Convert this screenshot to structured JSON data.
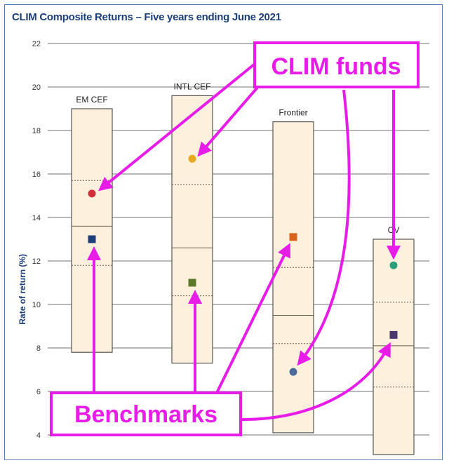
{
  "title": "CLIM Composite Returns – Five years ending June 2021",
  "colors": {
    "title": "#1c3f78",
    "band_fill": "#fdf0dc",
    "band_stroke": "#555555",
    "callout": "#e81ce8",
    "grid": "#444444"
  },
  "chart_data": {
    "type": "scatter",
    "ylabel": "Rate of return (%)",
    "ylim": [
      4,
      22
    ],
    "yticks": [
      4,
      6,
      8,
      10,
      12,
      14,
      16,
      18,
      20,
      22
    ],
    "grid": true,
    "categories": [
      {
        "label": "EM CEF",
        "range": [
          7.8,
          19.0
        ],
        "quartiles": [
          11.8,
          13.6,
          15.7
        ],
        "fund": {
          "value": 15.1,
          "color": "#d0303a"
        },
        "benchmark": {
          "value": 13.0,
          "color": "#1e3f7a"
        }
      },
      {
        "label": "INTL CEF",
        "range": [
          7.3,
          19.6
        ],
        "quartiles": [
          10.4,
          12.6,
          15.5
        ],
        "fund": {
          "value": 16.7,
          "color": "#e6a820"
        },
        "benchmark": {
          "value": 11.0,
          "color": "#5a7a2a"
        }
      },
      {
        "label": "Frontier",
        "range": [
          4.1,
          18.4
        ],
        "quartiles": [
          8.2,
          9.5,
          11.7
        ],
        "fund": {
          "value": 6.9,
          "color": "#4a6a9a"
        },
        "benchmark": {
          "value": 13.1,
          "color": "#d8641c"
        }
      },
      {
        "label": "CV",
        "range": [
          3.1,
          13.0
        ],
        "quartiles": [
          6.2,
          8.1,
          10.1
        ],
        "fund": {
          "value": 11.8,
          "color": "#2aa07a"
        },
        "benchmark": {
          "value": 8.6,
          "color": "#4a3a6a"
        }
      }
    ]
  },
  "callouts": {
    "funds_label": "CLIM funds",
    "benchmarks_label": "Benchmarks"
  }
}
